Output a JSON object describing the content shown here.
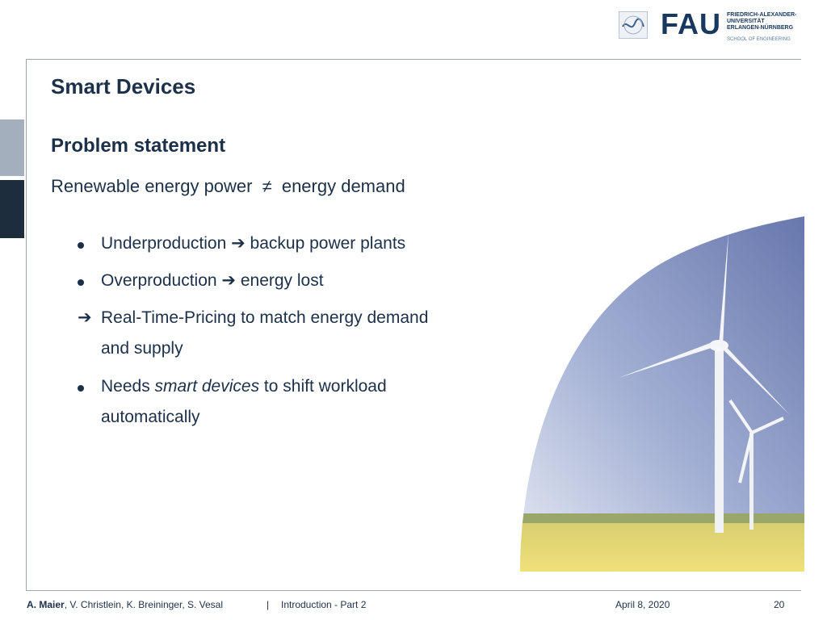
{
  "header": {
    "logo_name": "FAU",
    "logo_subtitle_lines": [
      "FRIEDRICH-ALEXANDER-",
      "UNIVERSITÄT",
      "ERLANGEN-NÜRNBERG"
    ],
    "school": "SCHOOL OF ENGINEERING"
  },
  "slide": {
    "title": "Smart Devices",
    "subtitle": "Problem statement",
    "statement_left": "Renewable energy power",
    "statement_symbol": "≠",
    "statement_right": "energy demand",
    "bullets": [
      {
        "marker": "dot",
        "lines": [
          "Underproduction ➔ backup power plants"
        ]
      },
      {
        "marker": "dot",
        "lines": [
          "Overproduction ➔ energy lost"
        ]
      },
      {
        "marker": "arrow",
        "marker_text": "➔",
        "lines": [
          "Real-Time-Pricing to match energy demand",
          "and supply"
        ]
      },
      {
        "marker": "dot",
        "prefix": "Needs ",
        "emphasis": "smart devices",
        "suffix": " to shift workload",
        "line2": "automatically"
      }
    ]
  },
  "footer": {
    "author_bold": "A. Maier",
    "authors_rest": ", V. Christlein, K. Breininger, S. Vesal",
    "separator": "|",
    "course": "Introduction - Part 2",
    "date": "April 8, 2020",
    "page": "20"
  },
  "colors": {
    "navy": "#1c3049",
    "sidebar_dark": "#1d2d3e",
    "sidebar_light": "#a3afbd",
    "field_yellow": "#e6d56a",
    "sky": "#8a98c4"
  }
}
